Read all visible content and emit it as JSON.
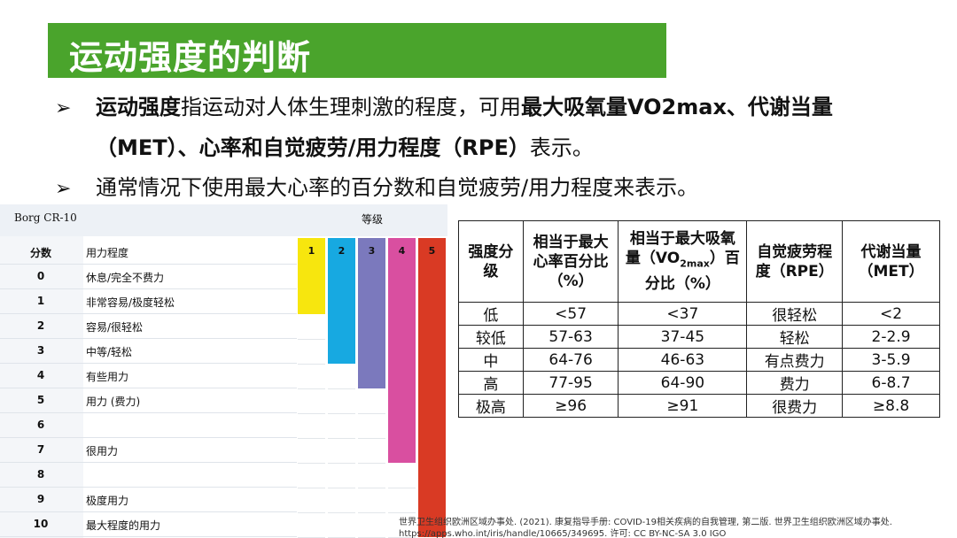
{
  "title": "运动强度的判断",
  "bullets": [
    {
      "line1": [
        {
          "text": "运动强度",
          "bold": true
        },
        {
          "text": "指运动对人体生理刺激的程度，可用",
          "bold": false
        },
        {
          "text": "最大吸氧量VO2max、代谢当量",
          "bold": true
        }
      ],
      "line2": [
        {
          "text": "（MET）、心率和自觉疲劳/用力程度（RPE）",
          "bold": true
        },
        {
          "text": "表示。",
          "bold": false
        }
      ]
    },
    {
      "line1": [
        {
          "text": "通常情况下使用最大心率的百分数和自觉疲劳/用力程度来表示。",
          "bold": false
        }
      ]
    }
  ],
  "bullet_symbol": "➢",
  "borg": {
    "title": "Borg CR-10",
    "level_header": "等级",
    "col_score": "分数",
    "col_effort": "用力程度",
    "rows": [
      {
        "score": "0",
        "effort": "休息/完全不费力"
      },
      {
        "score": "1",
        "effort": "非常容易/极度轻松"
      },
      {
        "score": "2",
        "effort": "容易/很轻松"
      },
      {
        "score": "3",
        "effort": "中等/轻松"
      },
      {
        "score": "4",
        "effort": "有些用力"
      },
      {
        "score": "5",
        "effort": "用力 (费力)"
      },
      {
        "score": "6",
        "effort": ""
      },
      {
        "score": "7",
        "effort": "很用力"
      },
      {
        "score": "8",
        "effort": ""
      },
      {
        "score": "9",
        "effort": "极度用力"
      },
      {
        "score": "10",
        "effort": "最大程度的用力"
      }
    ],
    "levels": [
      {
        "label": "1",
        "color": "#f7e60e",
        "top_score": 1
      },
      {
        "label": "2",
        "color": "#17a9e1",
        "top_score": 3
      },
      {
        "label": "3",
        "color": "#7b79bd",
        "top_score": 4
      },
      {
        "label": "4",
        "color": "#d94fa0",
        "top_score": 7
      },
      {
        "label": "5",
        "color": "#d93a24",
        "top_score": 10
      }
    ]
  },
  "table": {
    "headers": [
      "强度分级",
      "相当于最大心率百分比（%）",
      "相当于最大吸氧量（VO2max）百分比（%）",
      "自觉疲劳程度（RPE）",
      "代谢当量（MET）"
    ],
    "header_parts": {
      "vo2_prefix": "相当于最大吸氧量（VO",
      "vo2_sub": "2max",
      "vo2_suffix": "）百分比（%）"
    },
    "rows": [
      [
        "低",
        "<57",
        "<37",
        "很轻松",
        "<2"
      ],
      [
        "较低",
        "57-63",
        "37-45",
        "轻松",
        "2-2.9"
      ],
      [
        "中",
        "64-76",
        "46-63",
        "有点费力",
        "3-5.9"
      ],
      [
        "高",
        "77-95",
        "64-90",
        "费力",
        "6-8.7"
      ],
      [
        "极高",
        "≥96",
        "≥91",
        "很费力",
        "≥8.8"
      ]
    ]
  },
  "citation": {
    "line1": "世界卫生组织欧洲区域办事处. (2021). 康复指导手册: COVID-19相关疾病的自我管理, 第二版. 世界卫生组织欧洲区域办事处.",
    "line2": "https://apps.who.int/iris/handle/10665/349695. 许可: CC BY-NC-SA 3.0 IGO"
  }
}
